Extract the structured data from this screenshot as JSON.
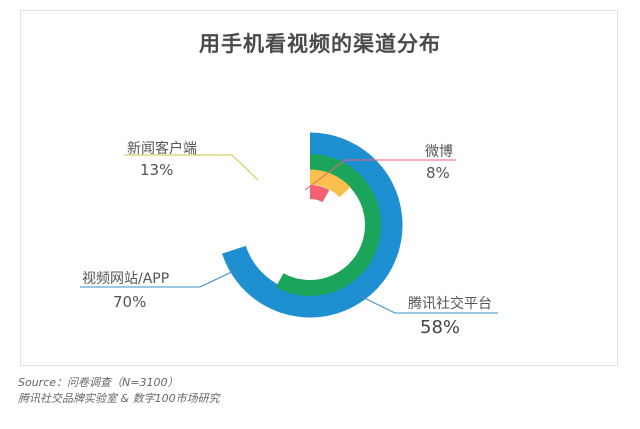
{
  "chart_data": {
    "type": "radial-bar",
    "title": "用手机看视频的渠道分布",
    "series": [
      {
        "name": "视频网站/APP",
        "value": 70,
        "value_label": "70%",
        "color": "#1e8fd0"
      },
      {
        "name": "腾讯社交平台",
        "value": 58,
        "value_label": "58%",
        "color": "#1aa55a"
      },
      {
        "name": "新闻客户端",
        "value": 13,
        "value_label": "13%",
        "color": "#fbc04b"
      },
      {
        "name": "微博",
        "value": 8,
        "value_label": "8%",
        "color": "#f26270"
      }
    ]
  },
  "source_line1": "Source：问卷调查（N=3100）",
  "source_line2": "腾讯社交品牌实验室 & 数字100市场研究"
}
